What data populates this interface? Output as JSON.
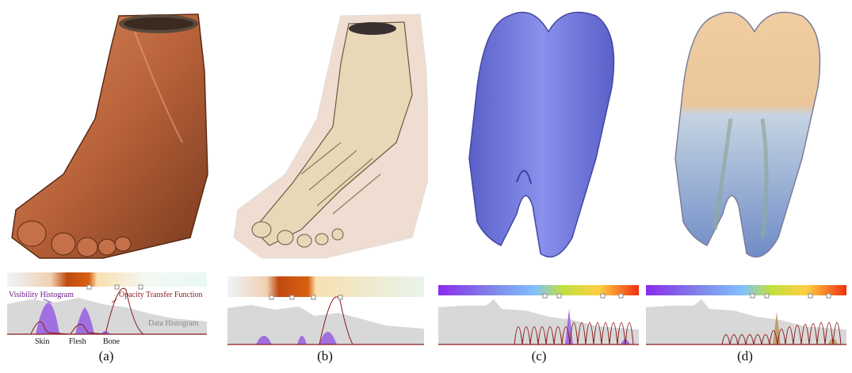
{
  "figure": {
    "panels": [
      {
        "id": "a",
        "caption": "(a)",
        "rendering": "foot-skin-render"
      },
      {
        "id": "b",
        "caption": "(b)",
        "rendering": "foot-bone-render"
      },
      {
        "id": "c",
        "caption": "(c)",
        "rendering": "tooth-opaque-render"
      },
      {
        "id": "d",
        "caption": "(d)",
        "rendering": "tooth-translucent-render"
      }
    ],
    "annotations": {
      "visibility_histogram": "Visibility Histogram",
      "opacity_transfer_function": "Opacity Transfer Function",
      "data_histogram": "Data Histogram",
      "skin": "Skin",
      "flesh": "Flesh",
      "bone": "Bone"
    },
    "colors": {
      "foot_skin": "#b8623a",
      "bone": "#e8d8b8",
      "tooth_blue": "#7a80e0",
      "tooth_crown": "#e8c090",
      "visibility": "#a070e0",
      "opacity_curve": "#8b1a1a",
      "data_histogram": "#d8d8d8"
    }
  }
}
